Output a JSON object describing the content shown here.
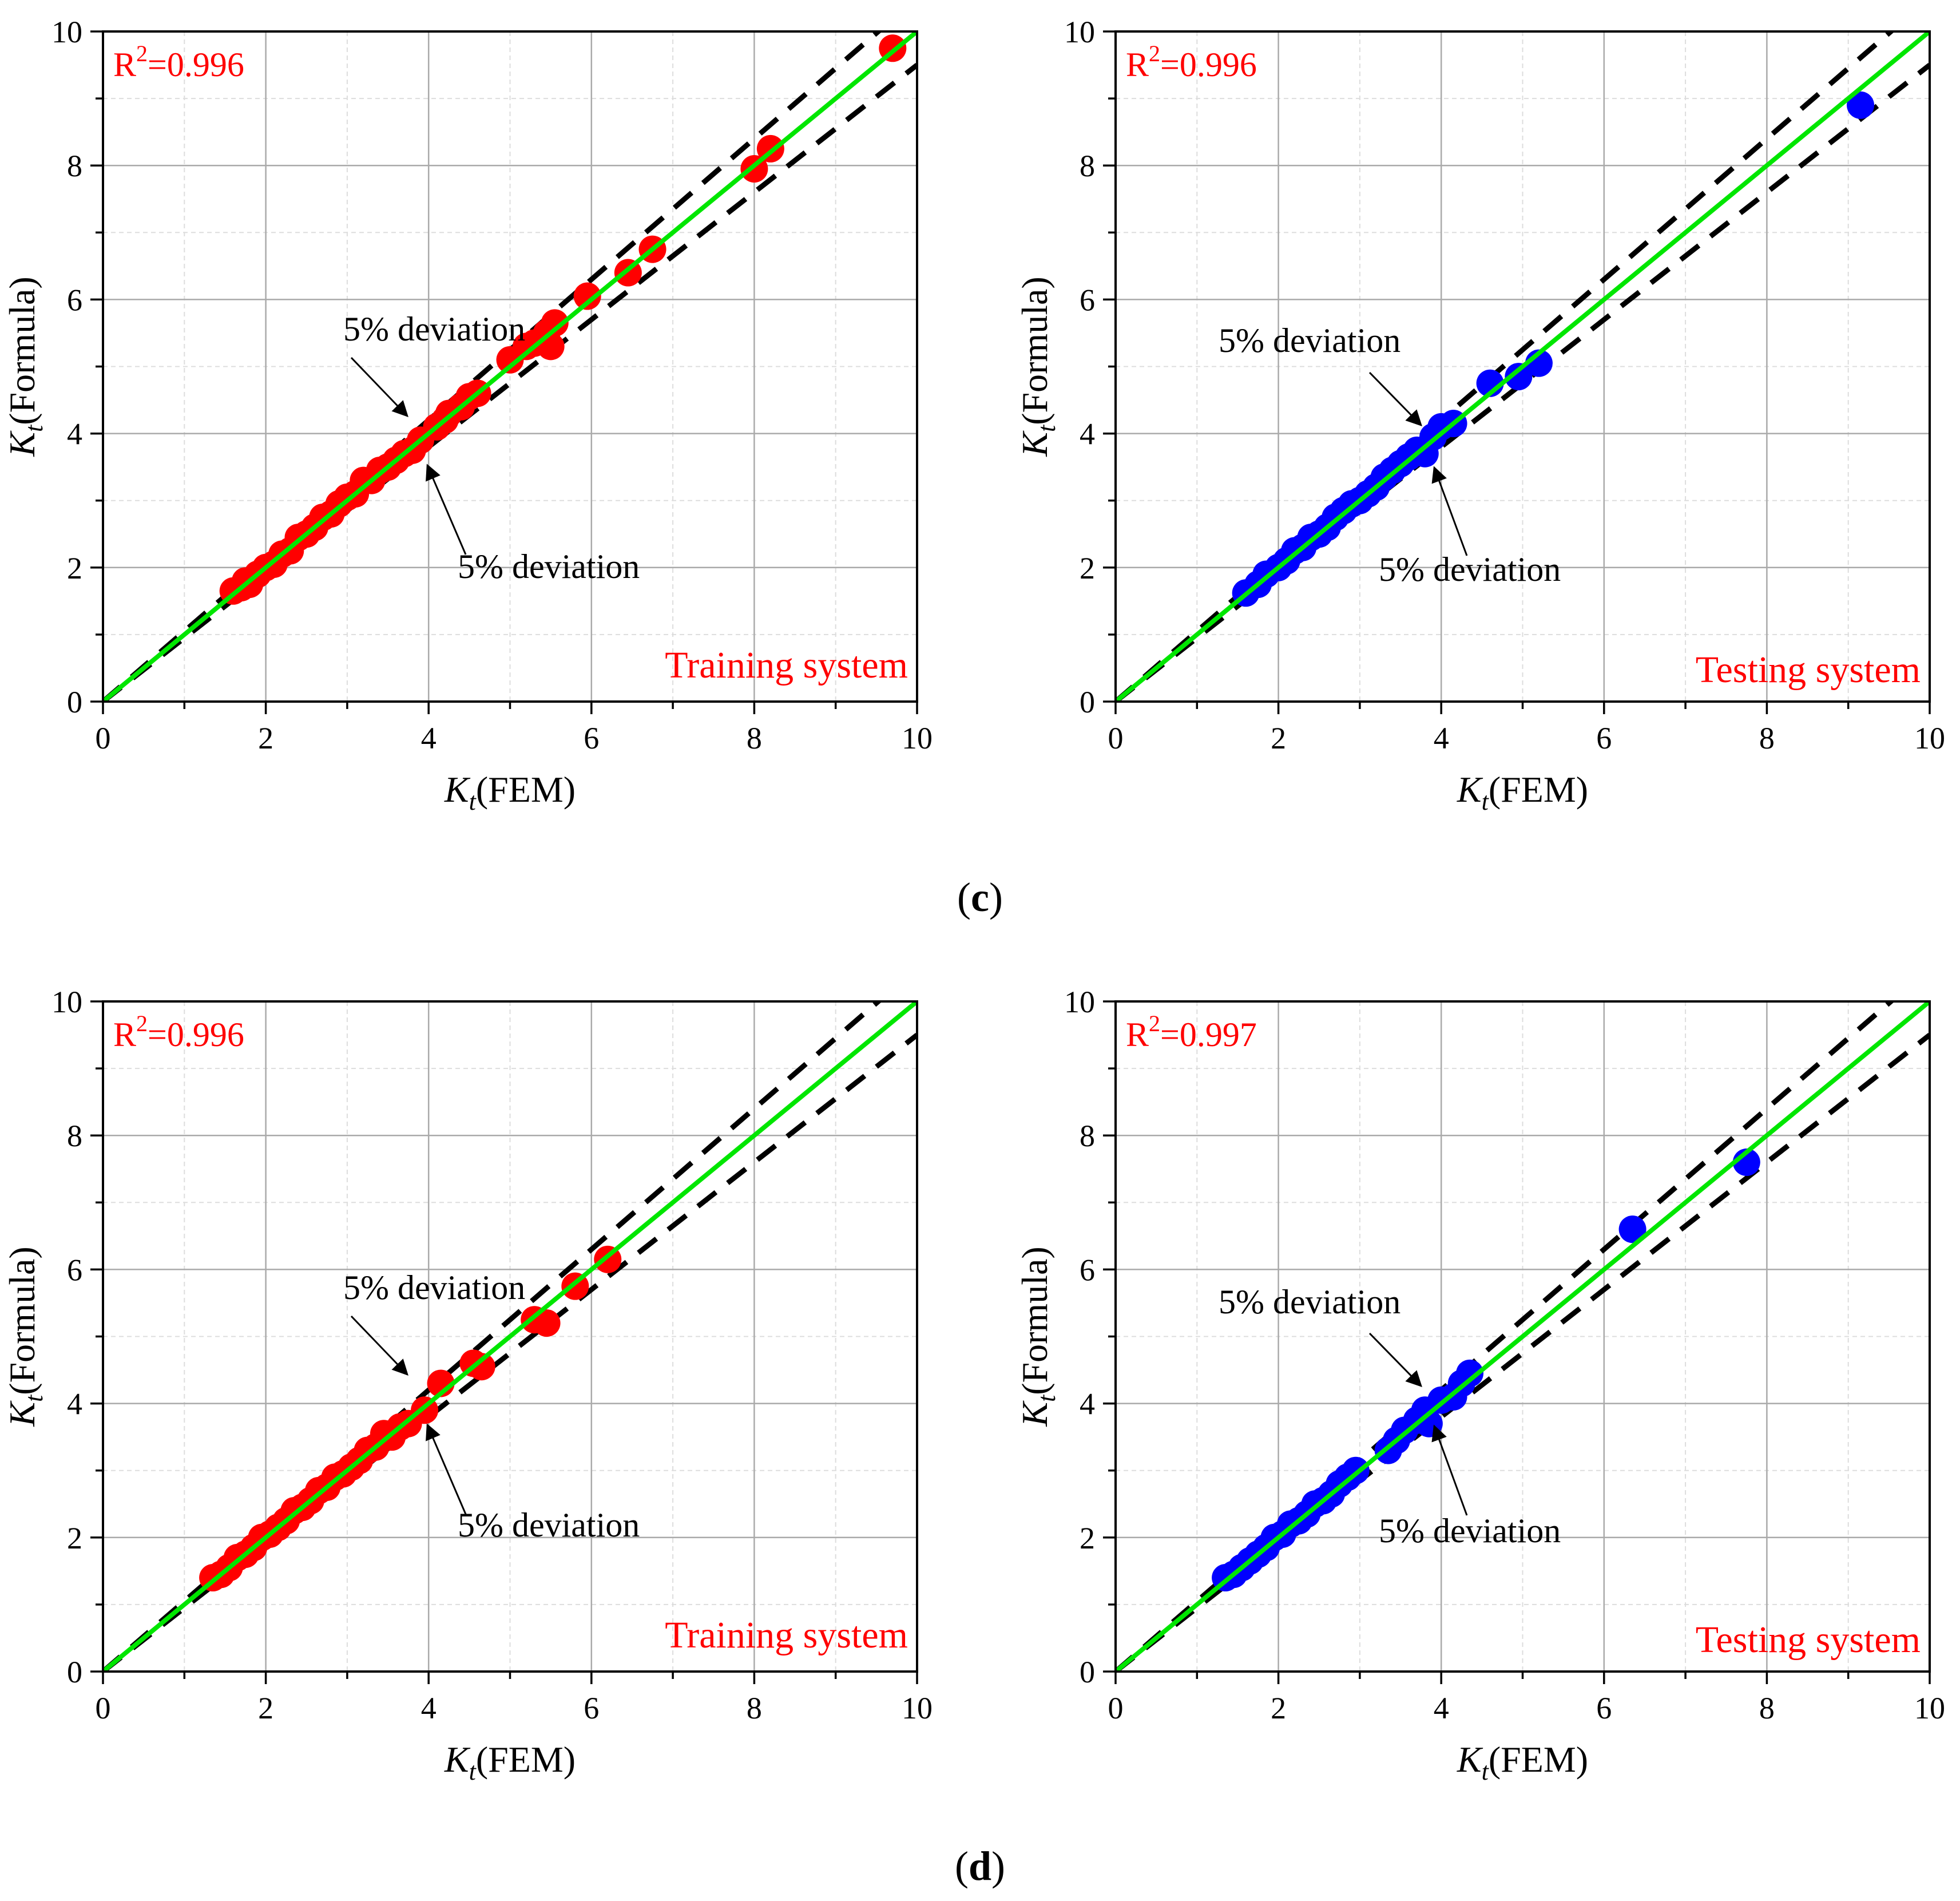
{
  "figure": {
    "panel_labels": [
      {
        "open": "(",
        "letter": "c",
        "close": ")"
      },
      {
        "open": "(",
        "letter": "d",
        "close": ")"
      }
    ]
  },
  "colors": {
    "train": "#ff0000",
    "test": "#0000ff",
    "fit_line": "#00e600",
    "deviation": "#000000",
    "grid_major": "#aaaaaa",
    "grid_minor": "#dddddd"
  },
  "chart_data": [
    {
      "type": "scatter",
      "panel": "c",
      "system": "Training system",
      "title": "",
      "xlabel": {
        "main": "K",
        "sub": "t",
        "suffix": "(FEM)"
      },
      "ylabel": {
        "main": "K",
        "sub": "t",
        "suffix": "(Formula)"
      },
      "xlim": [
        0,
        10
      ],
      "ylim": [
        0,
        10
      ],
      "xticks": [
        "0",
        "2",
        "4",
        "6",
        "8",
        "10"
      ],
      "yticks": [
        "0",
        "2",
        "4",
        "6",
        "8",
        "10"
      ],
      "r2": {
        "label": "R",
        "exp": "2",
        "value": "=0.996"
      },
      "deviation_labels": [
        "5% deviation",
        "5% deviation"
      ],
      "color": "#ff0000",
      "points": [
        [
          1.6,
          1.65
        ],
        [
          1.7,
          1.7
        ],
        [
          1.75,
          1.8
        ],
        [
          1.8,
          1.75
        ],
        [
          1.9,
          1.9
        ],
        [
          2.0,
          2.0
        ],
        [
          2.1,
          2.05
        ],
        [
          2.2,
          2.2
        ],
        [
          2.3,
          2.25
        ],
        [
          2.4,
          2.45
        ],
        [
          2.5,
          2.5
        ],
        [
          2.6,
          2.6
        ],
        [
          2.7,
          2.75
        ],
        [
          2.8,
          2.8
        ],
        [
          2.9,
          2.95
        ],
        [
          3.0,
          3.05
        ],
        [
          3.1,
          3.1
        ],
        [
          3.2,
          3.3
        ],
        [
          3.3,
          3.3
        ],
        [
          3.4,
          3.45
        ],
        [
          3.5,
          3.5
        ],
        [
          3.6,
          3.6
        ],
        [
          3.7,
          3.7
        ],
        [
          3.8,
          3.75
        ],
        [
          3.9,
          3.9
        ],
        [
          4.1,
          4.1
        ],
        [
          4.2,
          4.2
        ],
        [
          4.25,
          4.3
        ],
        [
          4.4,
          4.4
        ],
        [
          4.5,
          4.55
        ],
        [
          4.6,
          4.6
        ],
        [
          5.0,
          5.1
        ],
        [
          5.2,
          5.3
        ],
        [
          5.3,
          5.35
        ],
        [
          5.45,
          5.5
        ],
        [
          5.5,
          5.3
        ],
        [
          5.55,
          5.65
        ],
        [
          5.95,
          6.05
        ],
        [
          6.45,
          6.4
        ],
        [
          6.75,
          6.75
        ],
        [
          8.0,
          7.95
        ],
        [
          8.2,
          8.25
        ],
        [
          9.7,
          9.75
        ]
      ]
    },
    {
      "type": "scatter",
      "panel": "c",
      "system": "Testing system",
      "title": "",
      "xlabel": {
        "main": "K",
        "sub": "t",
        "suffix": "(FEM)"
      },
      "ylabel": {
        "main": "K",
        "sub": "t",
        "suffix": "(Formula)"
      },
      "xlim": [
        0,
        10
      ],
      "ylim": [
        0,
        10
      ],
      "xticks": [
        "0",
        "2",
        "4",
        "6",
        "8",
        "10"
      ],
      "yticks": [
        "0",
        "2",
        "4",
        "6",
        "8",
        "10"
      ],
      "r2": {
        "label": "R",
        "exp": "2",
        "value": "=0.996"
      },
      "deviation_labels": [
        "5% deviation",
        "5% deviation"
      ],
      "color": "#0000ff",
      "points": [
        [
          1.6,
          1.62
        ],
        [
          1.75,
          1.75
        ],
        [
          1.85,
          1.9
        ],
        [
          2.0,
          2.0
        ],
        [
          2.1,
          2.1
        ],
        [
          2.2,
          2.25
        ],
        [
          2.3,
          2.3
        ],
        [
          2.4,
          2.45
        ],
        [
          2.5,
          2.5
        ],
        [
          2.6,
          2.6
        ],
        [
          2.7,
          2.75
        ],
        [
          2.8,
          2.85
        ],
        [
          2.9,
          2.95
        ],
        [
          3.0,
          3.0
        ],
        [
          3.1,
          3.1
        ],
        [
          3.2,
          3.2
        ],
        [
          3.3,
          3.35
        ],
        [
          3.4,
          3.45
        ],
        [
          3.5,
          3.55
        ],
        [
          3.6,
          3.65
        ],
        [
          3.7,
          3.75
        ],
        [
          3.8,
          3.7
        ],
        [
          3.9,
          3.95
        ],
        [
          4.0,
          4.1
        ],
        [
          4.15,
          4.15
        ],
        [
          4.6,
          4.75
        ],
        [
          4.95,
          4.85
        ],
        [
          5.2,
          5.05
        ],
        [
          9.15,
          8.9
        ]
      ]
    },
    {
      "type": "scatter",
      "panel": "d",
      "system": "Training system",
      "title": "",
      "xlabel": {
        "main": "K",
        "sub": "t",
        "suffix": "(FEM)"
      },
      "ylabel": {
        "main": "K",
        "sub": "t",
        "suffix": "(Formula)"
      },
      "xlim": [
        0,
        10
      ],
      "ylim": [
        0,
        10
      ],
      "xticks": [
        "0",
        "2",
        "4",
        "6",
        "8",
        "10"
      ],
      "yticks": [
        "0",
        "2",
        "4",
        "6",
        "8",
        "10"
      ],
      "r2": {
        "label": "R",
        "exp": "2",
        "value": "=0.996"
      },
      "deviation_labels": [
        "5% deviation",
        "5% deviation"
      ],
      "color": "#ff0000",
      "points": [
        [
          1.35,
          1.4
        ],
        [
          1.45,
          1.45
        ],
        [
          1.55,
          1.55
        ],
        [
          1.65,
          1.7
        ],
        [
          1.75,
          1.75
        ],
        [
          1.85,
          1.85
        ],
        [
          1.95,
          2.0
        ],
        [
          2.05,
          2.05
        ],
        [
          2.15,
          2.15
        ],
        [
          2.25,
          2.25
        ],
        [
          2.35,
          2.4
        ],
        [
          2.45,
          2.45
        ],
        [
          2.55,
          2.55
        ],
        [
          2.65,
          2.7
        ],
        [
          2.75,
          2.75
        ],
        [
          2.85,
          2.9
        ],
        [
          2.95,
          2.95
        ],
        [
          3.05,
          3.05
        ],
        [
          3.15,
          3.15
        ],
        [
          3.25,
          3.3
        ],
        [
          3.35,
          3.35
        ],
        [
          3.45,
          3.55
        ],
        [
          3.55,
          3.5
        ],
        [
          3.65,
          3.65
        ],
        [
          3.75,
          3.7
        ],
        [
          3.95,
          3.9
        ],
        [
          4.15,
          4.3
        ],
        [
          4.55,
          4.6
        ],
        [
          4.65,
          4.55
        ],
        [
          5.3,
          5.25
        ],
        [
          5.45,
          5.2
        ],
        [
          5.8,
          5.75
        ],
        [
          6.2,
          6.15
        ]
      ]
    },
    {
      "type": "scatter",
      "panel": "d",
      "system": "Testing system",
      "title": "",
      "xlabel": {
        "main": "K",
        "sub": "t",
        "suffix": "(FEM)"
      },
      "ylabel": {
        "main": "K",
        "sub": "t",
        "suffix": "(Formula)"
      },
      "xlim": [
        0,
        10
      ],
      "ylim": [
        0,
        10
      ],
      "xticks": [
        "0",
        "2",
        "4",
        "6",
        "8",
        "10"
      ],
      "yticks": [
        "0",
        "2",
        "4",
        "6",
        "8",
        "10"
      ],
      "r2": {
        "label": "R",
        "exp": "2",
        "value": "=0.997"
      },
      "deviation_labels": [
        "5% deviation",
        "5% deviation"
      ],
      "color": "#0000ff",
      "points": [
        [
          1.35,
          1.4
        ],
        [
          1.45,
          1.45
        ],
        [
          1.55,
          1.55
        ],
        [
          1.65,
          1.65
        ],
        [
          1.75,
          1.75
        ],
        [
          1.85,
          1.85
        ],
        [
          1.95,
          2.0
        ],
        [
          2.05,
          2.05
        ],
        [
          2.15,
          2.2
        ],
        [
          2.25,
          2.25
        ],
        [
          2.35,
          2.35
        ],
        [
          2.45,
          2.5
        ],
        [
          2.55,
          2.55
        ],
        [
          2.65,
          2.65
        ],
        [
          2.75,
          2.8
        ],
        [
          2.85,
          2.9
        ],
        [
          2.95,
          3.0
        ],
        [
          3.35,
          3.3
        ],
        [
          3.45,
          3.45
        ],
        [
          3.55,
          3.6
        ],
        [
          3.7,
          3.75
        ],
        [
          3.8,
          3.9
        ],
        [
          3.85,
          3.7
        ],
        [
          4.0,
          4.05
        ],
        [
          4.15,
          4.1
        ],
        [
          4.25,
          4.3
        ],
        [
          4.35,
          4.45
        ],
        [
          6.35,
          6.6
        ],
        [
          7.75,
          7.6
        ]
      ]
    }
  ]
}
